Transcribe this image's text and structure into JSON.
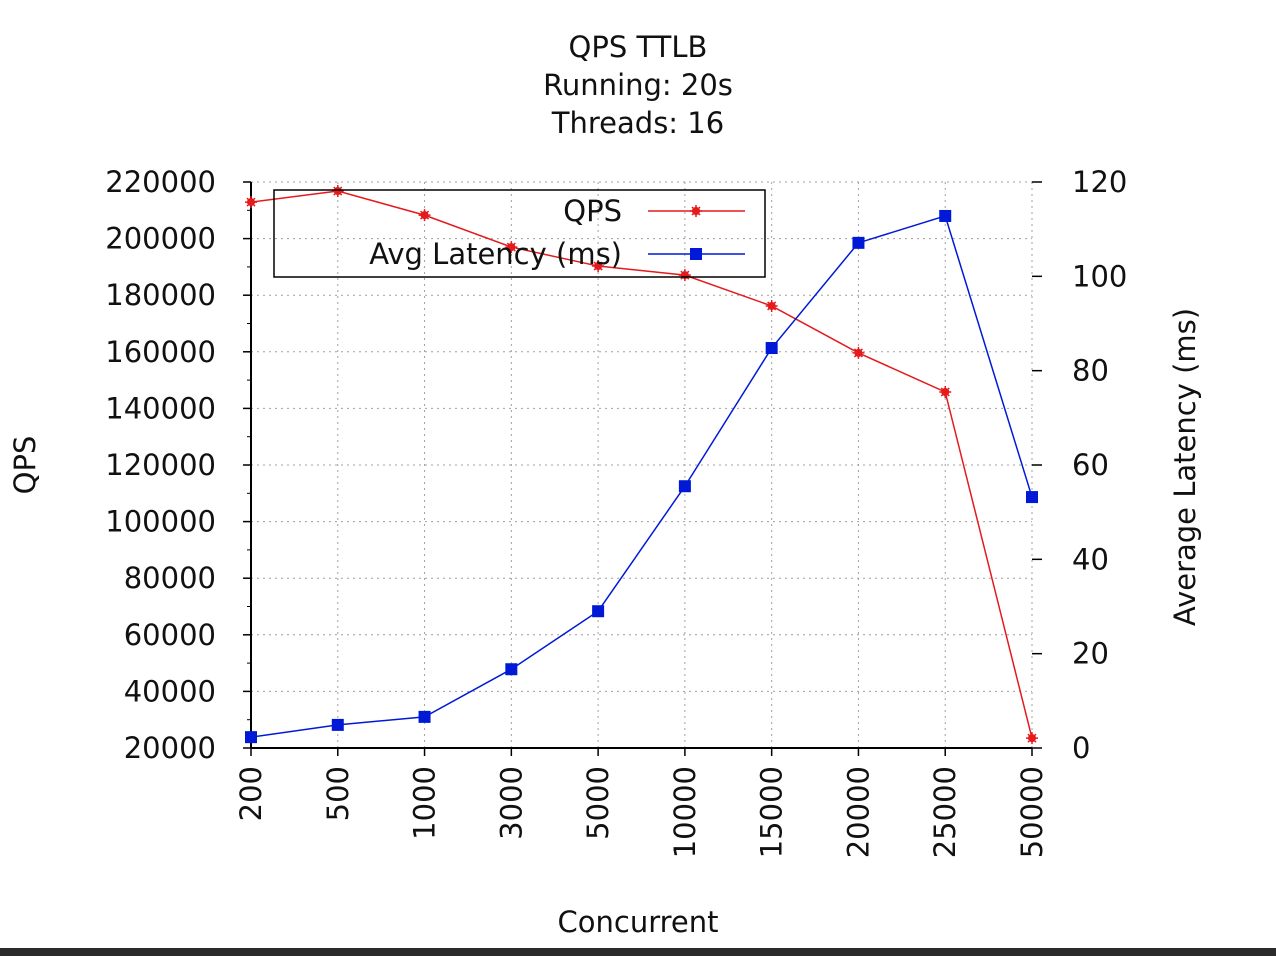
{
  "chart_data": {
    "type": "line",
    "title": [
      "QPS   TTLB",
      "Running: 20s",
      "Threads: 16"
    ],
    "xlabel": "Concurrent",
    "ylabel": "QPS",
    "y2label": "Average Latency (ms)",
    "categories": [
      "200",
      "500",
      "1000",
      "3000",
      "5000",
      "10000",
      "15000",
      "20000",
      "25000",
      "50000"
    ],
    "ylim": [
      20000,
      220000
    ],
    "yticks": [
      20000,
      40000,
      60000,
      80000,
      100000,
      120000,
      140000,
      160000,
      180000,
      200000,
      220000
    ],
    "y2lim": [
      0,
      120
    ],
    "y2ticks": [
      0,
      20,
      40,
      60,
      80,
      100,
      120
    ],
    "grid": true,
    "legend_position": "top-left",
    "series": [
      {
        "name": "QPS",
        "axis": "left",
        "color": "#e41a1c",
        "marker": "star",
        "values": [
          212900,
          216800,
          208300,
          197000,
          190300,
          187100,
          176200,
          159600,
          145800,
          23500
        ]
      },
      {
        "name": "Avg Latency (ms)",
        "axis": "right",
        "color": "#0019d6",
        "marker": "square",
        "values": [
          2.3,
          4.9,
          6.6,
          16.7,
          29.0,
          55.5,
          84.8,
          107.1,
          112.8,
          53.2
        ]
      }
    ]
  }
}
